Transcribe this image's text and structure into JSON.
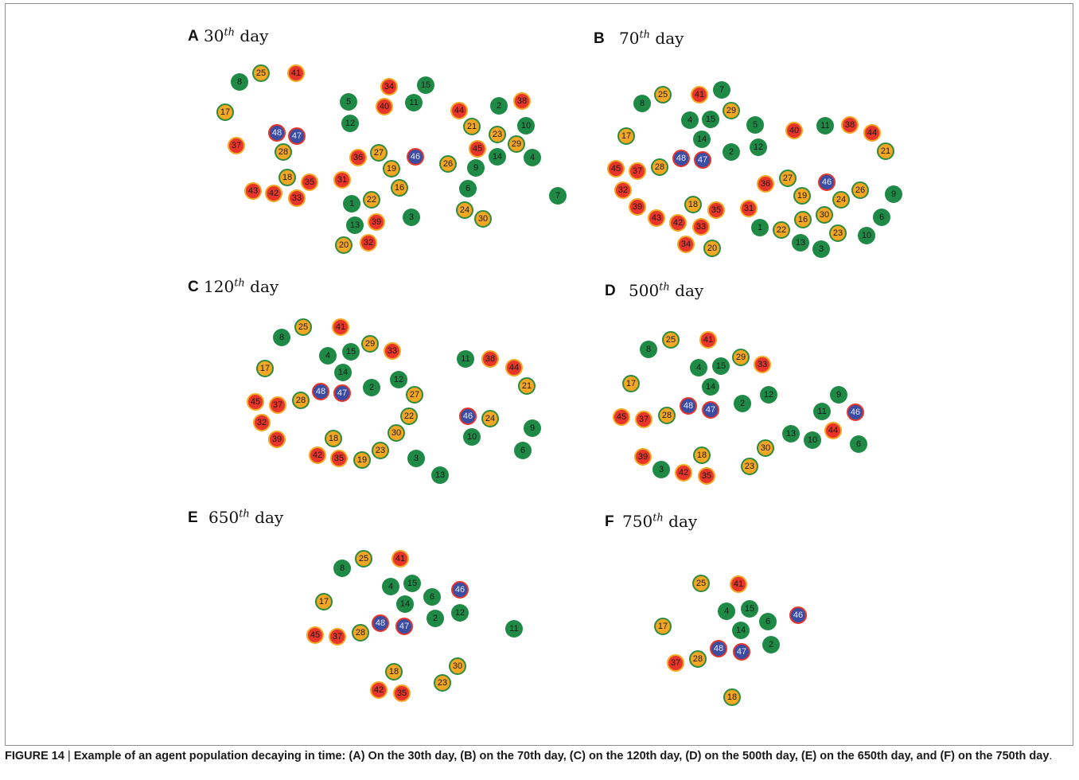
{
  "caption": {
    "label": "FIGURE 14",
    "separator": " | ",
    "text": "Example of an agent population decaying in time: (A) On the 30th day, (B) on the 70th day, (C) on the 120th day, (D) on the 500th day, (E) on the 650th day, and (F) on the 750th day",
    "end": "."
  },
  "node_styles": {
    "G": {
      "fill": "#1e8a45",
      "border": "#1e8a45"
    },
    "O": {
      "fill": "#f5a623",
      "border": "#2e8b3d"
    },
    "R": {
      "fill": "#e8352a",
      "border": "#f5a623"
    },
    "B": {
      "fill": "#3a4da3",
      "border": "#e8352a"
    }
  },
  "legend_types": {
    "G": "green node",
    "O": "orange node with green ring",
    "R": "red node with orange ring",
    "B": "blue node with red ring"
  },
  "panels": [
    {
      "id": "A",
      "letter": "A",
      "day_number": "30",
      "sup": "th",
      "day_word": "day",
      "nodes": [
        {
          "id": "8",
          "type": "G"
        },
        {
          "id": "25",
          "type": "O"
        },
        {
          "id": "41",
          "type": "R"
        },
        {
          "id": "17",
          "type": "O"
        },
        {
          "id": "48",
          "type": "B"
        },
        {
          "id": "47",
          "type": "B"
        },
        {
          "id": "37",
          "type": "R"
        },
        {
          "id": "28",
          "type": "O"
        },
        {
          "id": "18",
          "type": "O"
        },
        {
          "id": "35",
          "type": "R"
        },
        {
          "id": "43",
          "type": "R"
        },
        {
          "id": "42",
          "type": "R"
        },
        {
          "id": "33",
          "type": "R"
        },
        {
          "id": "34",
          "type": "R"
        },
        {
          "id": "15",
          "type": "G"
        },
        {
          "id": "5",
          "type": "G"
        },
        {
          "id": "11",
          "type": "G"
        },
        {
          "id": "40",
          "type": "R"
        },
        {
          "id": "12",
          "type": "G"
        },
        {
          "id": "36",
          "type": "R"
        },
        {
          "id": "27",
          "type": "O"
        },
        {
          "id": "19",
          "type": "O"
        },
        {
          "id": "46",
          "type": "B"
        },
        {
          "id": "31",
          "type": "R"
        },
        {
          "id": "16",
          "type": "O"
        },
        {
          "id": "1",
          "type": "G"
        },
        {
          "id": "22",
          "type": "O"
        },
        {
          "id": "13",
          "type": "G"
        },
        {
          "id": "39",
          "type": "R"
        },
        {
          "id": "3",
          "type": "G"
        },
        {
          "id": "20",
          "type": "O"
        },
        {
          "id": "32",
          "type": "R"
        },
        {
          "id": "44",
          "type": "R"
        },
        {
          "id": "2",
          "type": "G"
        },
        {
          "id": "38",
          "type": "R"
        },
        {
          "id": "21",
          "type": "O"
        },
        {
          "id": "23",
          "type": "O"
        },
        {
          "id": "10",
          "type": "G"
        },
        {
          "id": "45",
          "type": "R"
        },
        {
          "id": "29",
          "type": "O"
        },
        {
          "id": "14",
          "type": "G"
        },
        {
          "id": "4",
          "type": "G"
        },
        {
          "id": "26",
          "type": "O"
        },
        {
          "id": "9",
          "type": "G"
        },
        {
          "id": "6",
          "type": "G"
        },
        {
          "id": "7",
          "type": "G"
        },
        {
          "id": "24",
          "type": "O"
        },
        {
          "id": "30",
          "type": "O"
        }
      ]
    },
    {
      "id": "B",
      "letter": "B",
      "day_number": "70",
      "sup": "th",
      "day_word": "day",
      "nodes": [
        {
          "id": "8",
          "type": "G"
        },
        {
          "id": "25",
          "type": "O"
        },
        {
          "id": "41",
          "type": "R"
        },
        {
          "id": "7",
          "type": "G"
        },
        {
          "id": "29",
          "type": "O"
        },
        {
          "id": "4",
          "type": "G"
        },
        {
          "id": "15",
          "type": "G"
        },
        {
          "id": "5",
          "type": "G"
        },
        {
          "id": "40",
          "type": "R"
        },
        {
          "id": "11",
          "type": "G"
        },
        {
          "id": "38",
          "type": "R"
        },
        {
          "id": "44",
          "type": "R"
        },
        {
          "id": "17",
          "type": "O"
        },
        {
          "id": "14",
          "type": "G"
        },
        {
          "id": "21",
          "type": "O"
        },
        {
          "id": "2",
          "type": "G"
        },
        {
          "id": "12",
          "type": "G"
        },
        {
          "id": "48",
          "type": "B"
        },
        {
          "id": "47",
          "type": "B"
        },
        {
          "id": "45",
          "type": "R"
        },
        {
          "id": "37",
          "type": "R"
        },
        {
          "id": "28",
          "type": "O"
        },
        {
          "id": "36",
          "type": "R"
        },
        {
          "id": "27",
          "type": "O"
        },
        {
          "id": "46",
          "type": "B"
        },
        {
          "id": "32",
          "type": "R"
        },
        {
          "id": "19",
          "type": "O"
        },
        {
          "id": "26",
          "type": "O"
        },
        {
          "id": "9",
          "type": "G"
        },
        {
          "id": "24",
          "type": "O"
        },
        {
          "id": "18",
          "type": "O"
        },
        {
          "id": "35",
          "type": "R"
        },
        {
          "id": "39",
          "type": "R"
        },
        {
          "id": "31",
          "type": "R"
        },
        {
          "id": "6",
          "type": "G"
        },
        {
          "id": "43",
          "type": "R"
        },
        {
          "id": "42",
          "type": "R"
        },
        {
          "id": "33",
          "type": "R"
        },
        {
          "id": "16",
          "type": "O"
        },
        {
          "id": "30",
          "type": "O"
        },
        {
          "id": "1",
          "type": "G"
        },
        {
          "id": "22",
          "type": "O"
        },
        {
          "id": "23",
          "type": "O"
        },
        {
          "id": "10",
          "type": "G"
        },
        {
          "id": "34",
          "type": "R"
        },
        {
          "id": "20",
          "type": "O"
        },
        {
          "id": "13",
          "type": "G"
        },
        {
          "id": "3",
          "type": "G"
        }
      ]
    },
    {
      "id": "C",
      "letter": "C",
      "day_number": "120",
      "sup": "th",
      "day_word": "day",
      "nodes": [
        {
          "id": "8",
          "type": "G"
        },
        {
          "id": "25",
          "type": "O"
        },
        {
          "id": "41",
          "type": "R"
        },
        {
          "id": "29",
          "type": "O"
        },
        {
          "id": "33",
          "type": "R"
        },
        {
          "id": "4",
          "type": "G"
        },
        {
          "id": "15",
          "type": "G"
        },
        {
          "id": "11",
          "type": "G"
        },
        {
          "id": "38",
          "type": "R"
        },
        {
          "id": "44",
          "type": "R"
        },
        {
          "id": "17",
          "type": "O"
        },
        {
          "id": "14",
          "type": "G"
        },
        {
          "id": "12",
          "type": "G"
        },
        {
          "id": "2",
          "type": "G"
        },
        {
          "id": "21",
          "type": "O"
        },
        {
          "id": "48",
          "type": "B"
        },
        {
          "id": "47",
          "type": "B"
        },
        {
          "id": "27",
          "type": "O"
        },
        {
          "id": "45",
          "type": "R"
        },
        {
          "id": "37",
          "type": "R"
        },
        {
          "id": "28",
          "type": "O"
        },
        {
          "id": "22",
          "type": "O"
        },
        {
          "id": "46",
          "type": "B"
        },
        {
          "id": "24",
          "type": "O"
        },
        {
          "id": "32",
          "type": "R"
        },
        {
          "id": "9",
          "type": "G"
        },
        {
          "id": "30",
          "type": "O"
        },
        {
          "id": "10",
          "type": "G"
        },
        {
          "id": "39",
          "type": "R"
        },
        {
          "id": "18",
          "type": "O"
        },
        {
          "id": "23",
          "type": "O"
        },
        {
          "id": "6",
          "type": "G"
        },
        {
          "id": "42",
          "type": "R"
        },
        {
          "id": "35",
          "type": "R"
        },
        {
          "id": "19",
          "type": "O"
        },
        {
          "id": "3",
          "type": "G"
        },
        {
          "id": "13",
          "type": "G"
        }
      ]
    },
    {
      "id": "D",
      "letter": "D",
      "day_number": "500",
      "sup": "th",
      "day_word": "day",
      "nodes": [
        {
          "id": "8",
          "type": "G"
        },
        {
          "id": "25",
          "type": "O"
        },
        {
          "id": "41",
          "type": "R"
        },
        {
          "id": "29",
          "type": "O"
        },
        {
          "id": "33",
          "type": "R"
        },
        {
          "id": "4",
          "type": "G"
        },
        {
          "id": "15",
          "type": "G"
        },
        {
          "id": "17",
          "type": "O"
        },
        {
          "id": "14",
          "type": "G"
        },
        {
          "id": "2",
          "type": "G"
        },
        {
          "id": "12",
          "type": "G"
        },
        {
          "id": "9",
          "type": "G"
        },
        {
          "id": "48",
          "type": "B"
        },
        {
          "id": "47",
          "type": "B"
        },
        {
          "id": "11",
          "type": "G"
        },
        {
          "id": "46",
          "type": "B"
        },
        {
          "id": "45",
          "type": "R"
        },
        {
          "id": "37",
          "type": "R"
        },
        {
          "id": "28",
          "type": "O"
        },
        {
          "id": "13",
          "type": "G"
        },
        {
          "id": "44",
          "type": "R"
        },
        {
          "id": "10",
          "type": "G"
        },
        {
          "id": "6",
          "type": "G"
        },
        {
          "id": "30",
          "type": "O"
        },
        {
          "id": "39",
          "type": "R"
        },
        {
          "id": "18",
          "type": "O"
        },
        {
          "id": "23",
          "type": "O"
        },
        {
          "id": "3",
          "type": "G"
        },
        {
          "id": "42",
          "type": "R"
        },
        {
          "id": "35",
          "type": "R"
        }
      ]
    },
    {
      "id": "E",
      "letter": "E",
      "day_number": "650",
      "sup": "th",
      "day_word": "day",
      "nodes": [
        {
          "id": "8",
          "type": "G"
        },
        {
          "id": "25",
          "type": "O"
        },
        {
          "id": "41",
          "type": "R"
        },
        {
          "id": "4",
          "type": "G"
        },
        {
          "id": "15",
          "type": "G"
        },
        {
          "id": "6",
          "type": "G"
        },
        {
          "id": "46",
          "type": "B"
        },
        {
          "id": "17",
          "type": "O"
        },
        {
          "id": "14",
          "type": "G"
        },
        {
          "id": "2",
          "type": "G"
        },
        {
          "id": "12",
          "type": "G"
        },
        {
          "id": "48",
          "type": "B"
        },
        {
          "id": "47",
          "type": "B"
        },
        {
          "id": "11",
          "type": "G"
        },
        {
          "id": "45",
          "type": "R"
        },
        {
          "id": "37",
          "type": "R"
        },
        {
          "id": "28",
          "type": "O"
        },
        {
          "id": "18",
          "type": "O"
        },
        {
          "id": "30",
          "type": "O"
        },
        {
          "id": "23",
          "type": "O"
        },
        {
          "id": "42",
          "type": "R"
        },
        {
          "id": "35",
          "type": "R"
        }
      ]
    },
    {
      "id": "F",
      "letter": "F",
      "day_number": "750",
      "sup": "th",
      "day_word": "day",
      "nodes": [
        {
          "id": "25",
          "type": "O"
        },
        {
          "id": "41",
          "type": "R"
        },
        {
          "id": "4",
          "type": "G"
        },
        {
          "id": "15",
          "type": "G"
        },
        {
          "id": "6",
          "type": "G"
        },
        {
          "id": "46",
          "type": "B"
        },
        {
          "id": "17",
          "type": "O"
        },
        {
          "id": "14",
          "type": "G"
        },
        {
          "id": "48",
          "type": "B"
        },
        {
          "id": "47",
          "type": "B"
        },
        {
          "id": "2",
          "type": "G"
        },
        {
          "id": "37",
          "type": "R"
        },
        {
          "id": "28",
          "type": "O"
        },
        {
          "id": "18",
          "type": "O"
        }
      ]
    }
  ]
}
